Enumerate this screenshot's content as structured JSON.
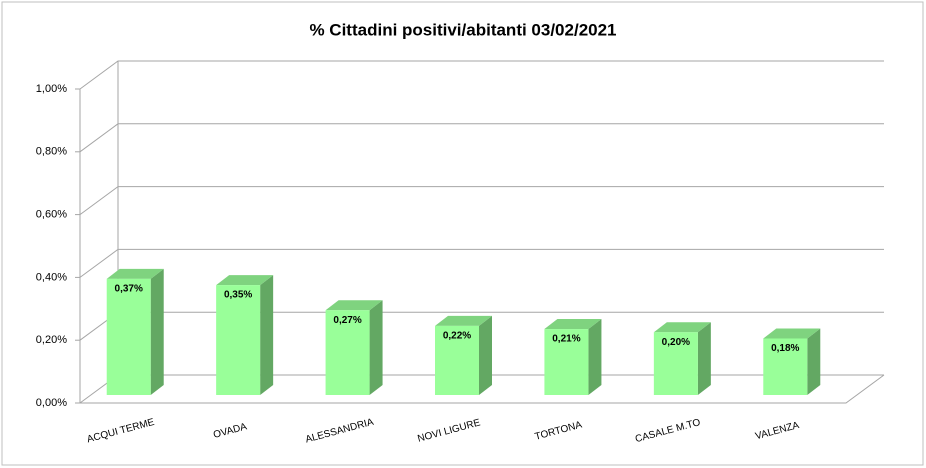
{
  "chart_data": {
    "type": "bar3d",
    "title": "% Cittadini positivi/abitanti 03/02/2021",
    "categories": [
      "ACQUI TERME",
      "OVADA",
      "ALESSANDRIA",
      "NOVI LIGURE",
      "TORTONA",
      "CASALE M.TO",
      "VALENZA"
    ],
    "values": [
      0.37,
      0.35,
      0.27,
      0.22,
      0.21,
      0.2,
      0.18
    ],
    "value_labels": [
      "0,37%",
      "0,35%",
      "0,27%",
      "0,22%",
      "0,21%",
      "0,20%",
      "0,18%"
    ],
    "color": "#99ff99",
    "ylim": [
      0,
      1
    ],
    "yticks": [
      {
        "value": 0,
        "label": "0,00%"
      },
      {
        "value": 0.2,
        "label": "0,20%"
      },
      {
        "value": 0.4,
        "label": "0,40%"
      },
      {
        "value": 0.6,
        "label": "0,60%"
      },
      {
        "value": 0.8,
        "label": "0,80%"
      },
      {
        "value": 1,
        "label": "1,00%"
      }
    ],
    "grid": true
  }
}
